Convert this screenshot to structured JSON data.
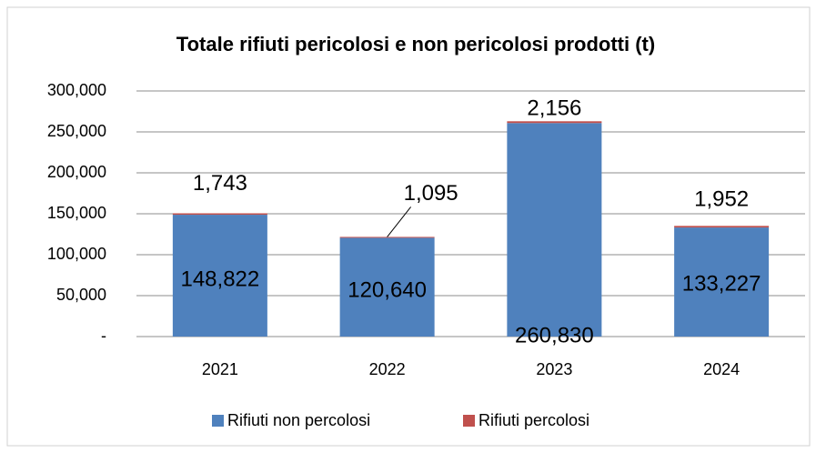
{
  "chart_data": {
    "type": "stacked_bar",
    "title": "Totale rifiuti pericolosi e non pericolosi prodotti  (t)",
    "categories": [
      "2021",
      "2022",
      "2023",
      "2024"
    ],
    "series": [
      {
        "name": "Rifiuti non percolosi",
        "color": "#4f81bd",
        "values": [
          148822,
          120640,
          260830,
          133227
        ],
        "value_labels": [
          "148,822",
          "120,640",
          "260,830",
          "133,227"
        ]
      },
      {
        "name": "Rifiuti percolosi",
        "color": "#c0504d",
        "values": [
          1743,
          1095,
          2156,
          1952
        ],
        "value_labels": [
          "1,743",
          "1,095",
          "2,156",
          "1,952"
        ]
      }
    ],
    "ylim": [
      0,
      300000
    ],
    "yticks": [
      {
        "value": 0,
        "label": "-"
      },
      {
        "value": 50000,
        "label": "50,000"
      },
      {
        "value": 100000,
        "label": "100,000"
      },
      {
        "value": 150000,
        "label": "150,000"
      },
      {
        "value": 200000,
        "label": "200,000"
      },
      {
        "value": 250000,
        "label": "250,000"
      },
      {
        "value": 300000,
        "label": "300,000"
      }
    ],
    "grid": true
  }
}
